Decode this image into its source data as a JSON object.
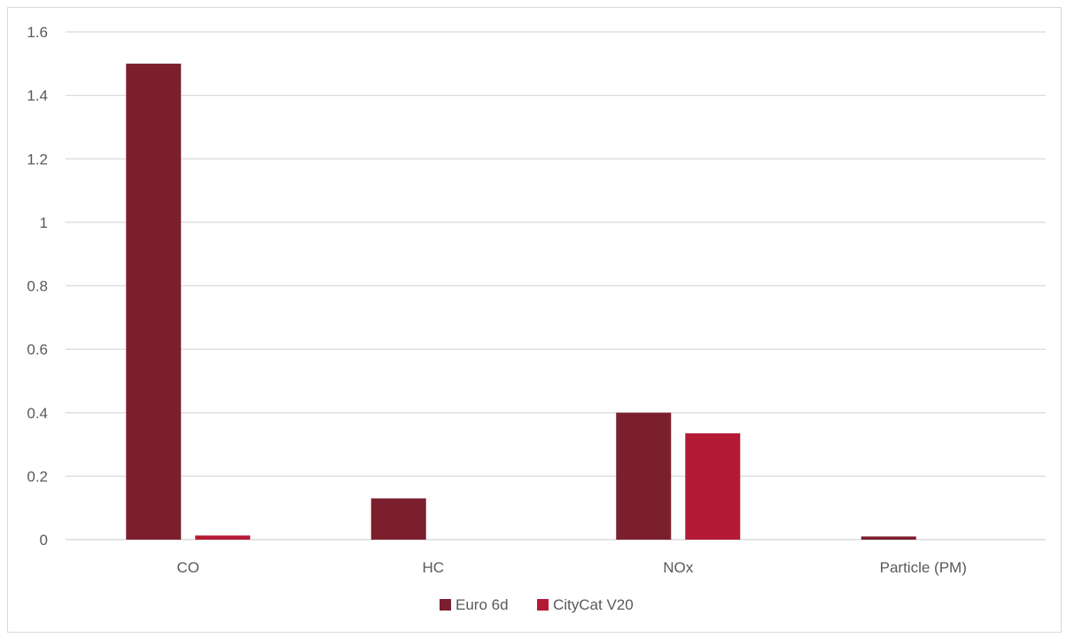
{
  "chart_data": {
    "type": "bar",
    "categories": [
      "CO",
      "HC",
      "NOx",
      "Particle (PM)"
    ],
    "series": [
      {
        "name": "Euro 6d",
        "color": "#7b1f2e",
        "values": [
          1.5,
          0.13,
          0.4,
          0.01
        ]
      },
      {
        "name": "CityCat V20",
        "color": "#b51a34",
        "values": [
          0.013,
          0,
          0.335,
          0
        ]
      }
    ],
    "title": "",
    "xlabel": "",
    "ylabel": "",
    "ylim": [
      0,
      1.6
    ],
    "yticks": [
      "0",
      "0.2",
      "0.4",
      "0.6",
      "0.8",
      "1",
      "1.2",
      "1.4",
      "1.6"
    ],
    "grid": true,
    "legend_position": "bottom"
  }
}
